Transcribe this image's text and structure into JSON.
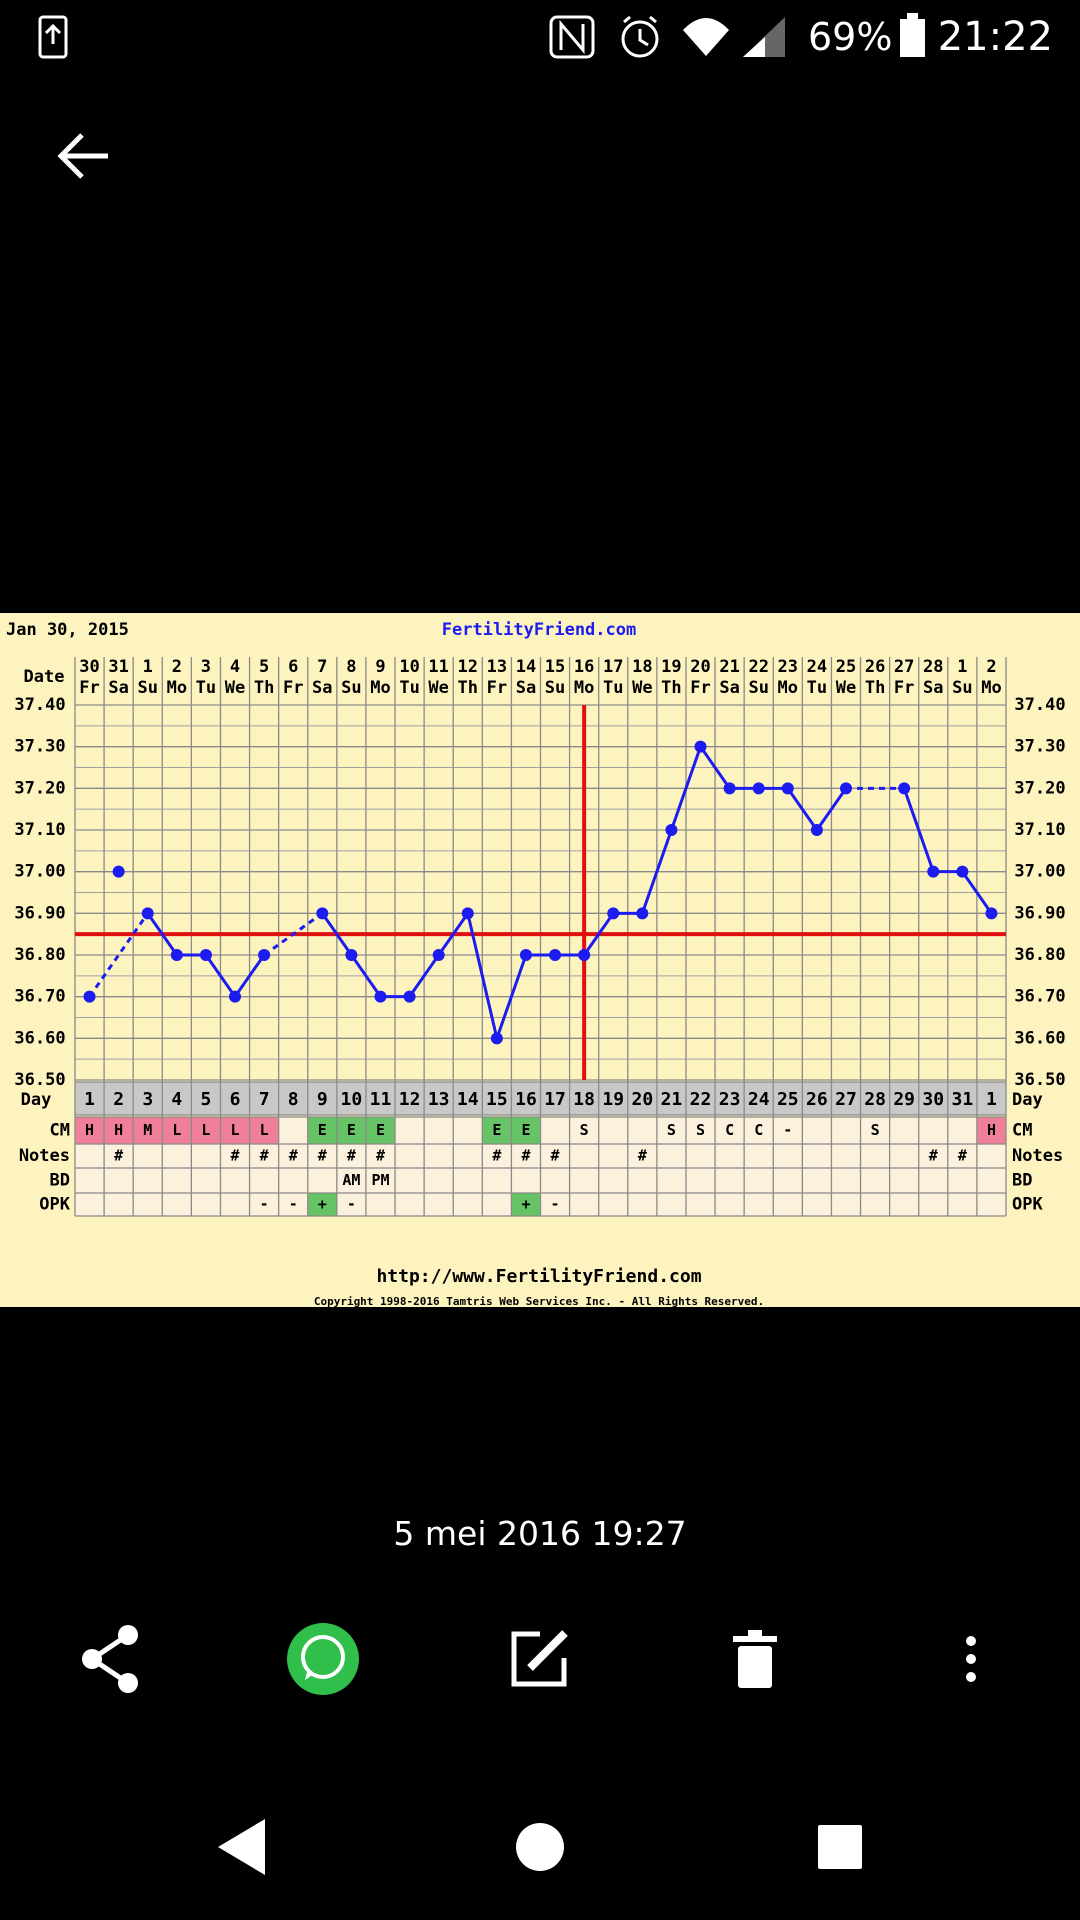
{
  "status_bar": {
    "battery": "69%",
    "time": "21:22"
  },
  "chart_data": {
    "type": "line",
    "start_date": "Jan 30, 2015",
    "title": "FertilityFriend.com",
    "row_labels": {
      "date": "Date",
      "day": "Day",
      "cm": "CM",
      "notes": "Notes",
      "bd": "BD",
      "opk": "OPK"
    },
    "dates": [
      30,
      31,
      1,
      2,
      3,
      4,
      5,
      6,
      7,
      8,
      9,
      10,
      11,
      12,
      13,
      14,
      15,
      16,
      17,
      18,
      19,
      20,
      21,
      22,
      23,
      24,
      25,
      26,
      27,
      28,
      1,
      2
    ],
    "weekdays": [
      "Fr",
      "Sa",
      "Su",
      "Mo",
      "Tu",
      "We",
      "Th",
      "Fr",
      "Sa",
      "Su",
      "Mo",
      "Tu",
      "We",
      "Th",
      "Fr",
      "Sa",
      "Su",
      "Mo",
      "Tu",
      "We",
      "Th",
      "Fr",
      "Sa",
      "Su",
      "Mo",
      "Tu",
      "We",
      "Th",
      "Fr",
      "Sa",
      "Su",
      "Mo"
    ],
    "days": [
      1,
      2,
      3,
      4,
      5,
      6,
      7,
      8,
      9,
      10,
      11,
      12,
      13,
      14,
      15,
      16,
      17,
      18,
      19,
      20,
      21,
      22,
      23,
      24,
      25,
      26,
      27,
      28,
      29,
      30,
      31,
      1
    ],
    "values": [
      36.7,
      null,
      36.9,
      36.8,
      36.8,
      36.7,
      36.8,
      null,
      36.9,
      36.8,
      36.7,
      36.7,
      36.8,
      36.9,
      36.6,
      36.8,
      36.8,
      36.8,
      36.9,
      36.9,
      37.1,
      37.3,
      37.2,
      37.2,
      37.2,
      37.1,
      37.2,
      null,
      37.2,
      37.0,
      37.0,
      36.9
    ],
    "discarded_values": [
      null,
      37.0,
      null,
      null,
      null,
      null,
      null,
      null,
      null,
      null,
      null,
      null,
      null,
      null,
      null,
      null,
      null,
      null,
      null,
      null,
      null,
      null,
      null,
      null,
      null,
      null,
      null,
      null,
      null,
      null,
      null,
      null
    ],
    "color": "#1c1cf0",
    "ylim": [
      36.5,
      37.4
    ],
    "yticks": [
      {
        "value": 36.5,
        "label": "36.50"
      },
      {
        "value": 36.6,
        "label": "36.60"
      },
      {
        "value": 36.7,
        "label": "36.70"
      },
      {
        "value": 36.8,
        "label": "36.80"
      },
      {
        "value": 36.9,
        "label": "36.90"
      },
      {
        "value": 37.0,
        "label": "37.00"
      },
      {
        "value": 37.1,
        "label": "37.10"
      },
      {
        "value": 37.2,
        "label": "37.20"
      },
      {
        "value": 37.3,
        "label": "37.30"
      },
      {
        "value": 37.4,
        "label": "37.40"
      }
    ],
    "grid": true,
    "coverline": 36.85,
    "ovulation_day": 18,
    "marker_color": "#e01010",
    "cm": [
      "H",
      "H",
      "M",
      "L",
      "L",
      "L",
      "L",
      null,
      "E",
      "E",
      "E",
      null,
      null,
      null,
      "E",
      "E",
      null,
      "S",
      null,
      null,
      "S",
      "S",
      "C",
      "C",
      "-",
      null,
      null,
      "S",
      null,
      null,
      null,
      "H"
    ],
    "notes": [
      null,
      "#",
      null,
      null,
      null,
      "#",
      "#",
      "#",
      "#",
      "#",
      "#",
      null,
      null,
      null,
      "#",
      "#",
      "#",
      null,
      null,
      "#",
      null,
      null,
      null,
      null,
      null,
      null,
      null,
      null,
      null,
      "#",
      "#",
      null
    ],
    "bd": [
      null,
      null,
      null,
      null,
      null,
      null,
      null,
      null,
      null,
      "AM",
      "PM",
      null,
      null,
      null,
      null,
      null,
      null,
      null,
      null,
      null,
      null,
      null,
      null,
      null,
      null,
      null,
      null,
      null,
      null,
      null,
      null,
      null
    ],
    "opk": [
      null,
      null,
      null,
      null,
      null,
      null,
      "-",
      "-",
      "+",
      "-",
      null,
      null,
      null,
      null,
      null,
      "+",
      "-",
      null,
      null,
      null,
      null,
      null,
      null,
      null,
      null,
      null,
      null,
      null,
      null,
      null,
      null,
      null
    ],
    "highlight_colors": {
      "H": "#f0809a",
      "M": "#f0809a",
      "L": "#f0809a",
      "E": "#66c466",
      "+": "#66c466"
    }
  },
  "footer": {
    "url": "http://www.FertilityFriend.com",
    "copyright": "Copyright 1998-2016 Tamtris Web Services Inc. - All Rights Reserved."
  },
  "photo_date": "5 mei 2016 19:27"
}
